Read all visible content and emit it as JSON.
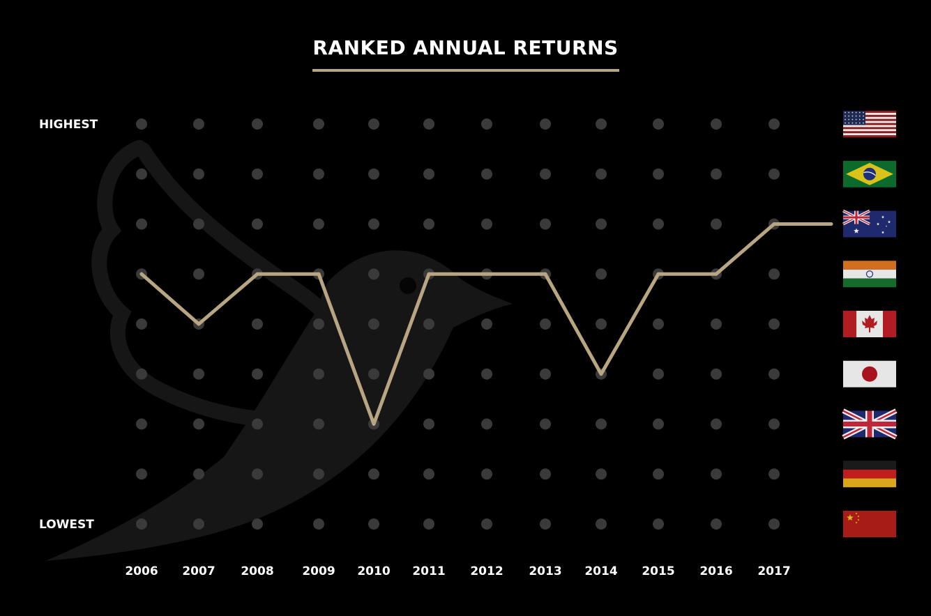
{
  "title": "RANKED ANNUAL RETURNS",
  "y_top_label": "HIGHEST",
  "y_bottom_label": "LOWEST",
  "colors": {
    "background": "#000000",
    "line": "#b8a683",
    "dot": "#3a3a3a",
    "watermark": "#161616"
  },
  "watermark_icon": "bird-logo-icon",
  "chart_data": {
    "type": "line",
    "x": [
      "2006",
      "2007",
      "2008",
      "2009",
      "2010",
      "2011",
      "2012",
      "2013",
      "2014",
      "2015",
      "2016",
      "2017"
    ],
    "ranks": 9,
    "y_direction": "1 = highest, 9 = lowest",
    "series": [
      {
        "values": [
          4,
          5,
          4,
          4,
          7,
          4,
          4,
          4,
          6,
          4,
          4,
          3
        ]
      }
    ],
    "end_value": 3,
    "rank_markers": [
      {
        "rank": 1,
        "flag": "usa-flag-icon"
      },
      {
        "rank": 2,
        "flag": "brazil-flag-icon"
      },
      {
        "rank": 3,
        "flag": "australia-flag-icon"
      },
      {
        "rank": 4,
        "flag": "india-flag-icon"
      },
      {
        "rank": 5,
        "flag": "canada-flag-icon"
      },
      {
        "rank": 6,
        "flag": "japan-flag-icon"
      },
      {
        "rank": 7,
        "flag": "uk-flag-icon"
      },
      {
        "rank": 8,
        "flag": "germany-flag-icon"
      },
      {
        "rank": 9,
        "flag": "china-flag-icon"
      }
    ],
    "grid": true
  }
}
